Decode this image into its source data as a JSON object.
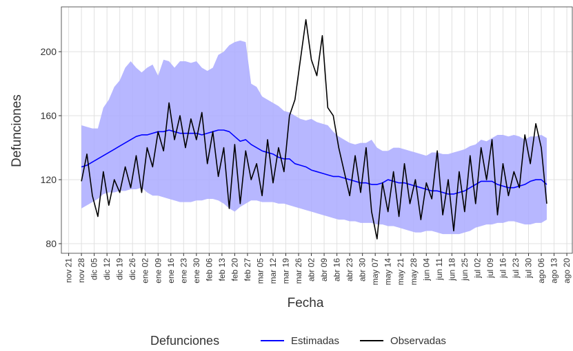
{
  "chart_data": {
    "type": "line",
    "xlabel": "Fecha",
    "ylabel": "Defunciones",
    "legend_title": "Defunciones",
    "legend": "bottom",
    "grid": true,
    "x": [
      7,
      10,
      13,
      16,
      19,
      22,
      25,
      28,
      31,
      34,
      37,
      40,
      43,
      46,
      49,
      52,
      55,
      58,
      61,
      64,
      67,
      70,
      73,
      76,
      79,
      82,
      85,
      88,
      91,
      94,
      97,
      100,
      103,
      106,
      109,
      112,
      115,
      118,
      121,
      124,
      127,
      130,
      133,
      136,
      139,
      142,
      145,
      148,
      151,
      154,
      157,
      160,
      163,
      166,
      169,
      172,
      175,
      178,
      181,
      184,
      187,
      190,
      193,
      196,
      199,
      202,
      205,
      208,
      211,
      214,
      217,
      220,
      223,
      226,
      229,
      232,
      235,
      238,
      241,
      244,
      247,
      250,
      253,
      256,
      259,
      262
    ],
    "xlim": [
      -4,
      276
    ],
    "xticks": [
      {
        "value": 0,
        "label": "nov 21"
      },
      {
        "value": 7,
        "label": "nov 28"
      },
      {
        "value": 14,
        "label": "dic 05"
      },
      {
        "value": 21,
        "label": "dic 12"
      },
      {
        "value": 28,
        "label": "dic 19"
      },
      {
        "value": 35,
        "label": "dic 26"
      },
      {
        "value": 42,
        "label": "ene 02"
      },
      {
        "value": 49,
        "label": "ene 09"
      },
      {
        "value": 56,
        "label": "ene 16"
      },
      {
        "value": 63,
        "label": "ene 23"
      },
      {
        "value": 70,
        "label": "ene 30"
      },
      {
        "value": 77,
        "label": "feb 06"
      },
      {
        "value": 84,
        "label": "feb 13"
      },
      {
        "value": 91,
        "label": "feb 20"
      },
      {
        "value": 98,
        "label": "feb 27"
      },
      {
        "value": 105,
        "label": "mar 05"
      },
      {
        "value": 112,
        "label": "mar 12"
      },
      {
        "value": 119,
        "label": "mar 19"
      },
      {
        "value": 126,
        "label": "mar 26"
      },
      {
        "value": 133,
        "label": "abr 02"
      },
      {
        "value": 140,
        "label": "abr 09"
      },
      {
        "value": 147,
        "label": "abr 16"
      },
      {
        "value": 154,
        "label": "abr 23"
      },
      {
        "value": 161,
        "label": "abr 30"
      },
      {
        "value": 168,
        "label": "may 07"
      },
      {
        "value": 175,
        "label": "may 14"
      },
      {
        "value": 182,
        "label": "may 21"
      },
      {
        "value": 189,
        "label": "may 28"
      },
      {
        "value": 196,
        "label": "jun 04"
      },
      {
        "value": 203,
        "label": "jun 11"
      },
      {
        "value": 210,
        "label": "jun 18"
      },
      {
        "value": 217,
        "label": "jun 25"
      },
      {
        "value": 224,
        "label": "jul 02"
      },
      {
        "value": 231,
        "label": "jul 09"
      },
      {
        "value": 238,
        "label": "jul 16"
      },
      {
        "value": 245,
        "label": "jul 23"
      },
      {
        "value": 252,
        "label": "jul 30"
      },
      {
        "value": 259,
        "label": "ago 06"
      },
      {
        "value": 266,
        "label": "ago 13"
      },
      {
        "value": 273,
        "label": "ago 20"
      }
    ],
    "ylim": [
      74,
      228
    ],
    "yticks": [
      80,
      120,
      160,
      200
    ],
    "band": {
      "color": "#aaaaff",
      "upper": [
        154,
        153,
        152,
        152,
        165,
        170,
        178,
        182,
        190,
        194,
        190,
        187,
        190,
        192,
        185,
        195,
        194,
        190,
        194,
        194,
        193,
        194,
        190,
        188,
        190,
        198,
        200,
        204,
        206,
        207,
        206,
        180,
        178,
        172,
        170,
        168,
        166,
        163,
        162,
        160,
        158,
        157,
        158,
        156,
        155,
        154,
        150,
        147,
        145,
        143,
        142,
        143,
        143,
        145,
        140,
        138,
        138,
        140,
        140,
        139,
        138,
        137,
        136,
        135,
        137,
        137,
        136,
        136,
        137,
        138,
        139,
        141,
        142,
        145,
        144,
        146,
        148,
        148,
        147,
        148,
        147,
        145,
        147,
        147,
        148,
        146
      ],
      "lower": [
        102,
        104,
        106,
        108,
        111,
        112,
        112,
        113,
        113,
        114,
        114,
        115,
        112,
        110,
        110,
        109,
        108,
        107,
        106,
        106,
        106,
        107,
        107,
        108,
        108,
        107,
        105,
        102,
        100,
        103,
        105,
        107,
        107,
        106,
        106,
        106,
        105,
        105,
        104,
        103,
        102,
        101,
        100,
        99,
        98,
        97,
        96,
        95,
        95,
        94,
        94,
        93,
        93,
        93,
        92,
        92,
        91,
        91,
        90,
        89,
        88,
        87,
        87,
        88,
        88,
        87,
        86,
        86,
        86,
        86,
        87,
        88,
        90,
        91,
        92,
        92,
        93,
        93,
        94,
        94,
        93,
        92,
        92,
        93,
        93,
        95
      ]
    },
    "series": [
      {
        "name": "Estimadas",
        "color": "#0000ff",
        "values": [
          128,
          129,
          131,
          133,
          135,
          137,
          139,
          141,
          143,
          145,
          147,
          148,
          148,
          149,
          150,
          150,
          151,
          150,
          149,
          149,
          149,
          149,
          148,
          149,
          150,
          151,
          151,
          150,
          147,
          144,
          145,
          142,
          140,
          138,
          137,
          136,
          134,
          133,
          133,
          130,
          129,
          128,
          126,
          125,
          124,
          123,
          122,
          122,
          121,
          120,
          119,
          118,
          118,
          117,
          117,
          118,
          120,
          119,
          118,
          118,
          117,
          116,
          115,
          114,
          113,
          113,
          112,
          111,
          111,
          112,
          113,
          115,
          117,
          119,
          119,
          119,
          117,
          116,
          115,
          115,
          116,
          117,
          119,
          120,
          120,
          117
        ]
      },
      {
        "name": "Observadas",
        "color": "#000000",
        "values": [
          119,
          136,
          110,
          97,
          125,
          104,
          120,
          112,
          128,
          115,
          135,
          112,
          140,
          128,
          150,
          138,
          168,
          145,
          160,
          140,
          158,
          145,
          162,
          130,
          150,
          122,
          140,
          102,
          142,
          105,
          138,
          120,
          130,
          110,
          145,
          118,
          140,
          125,
          160,
          170,
          195,
          220,
          195,
          185,
          210,
          165,
          160,
          140,
          125,
          110,
          135,
          112,
          140,
          100,
          83,
          118,
          100,
          125,
          97,
          130,
          105,
          120,
          95,
          118,
          108,
          138,
          98,
          120,
          88,
          125,
          100,
          135,
          105,
          140,
          120,
          145,
          98,
          130,
          110,
          125,
          115,
          148,
          130,
          155,
          140,
          105
        ]
      }
    ]
  }
}
